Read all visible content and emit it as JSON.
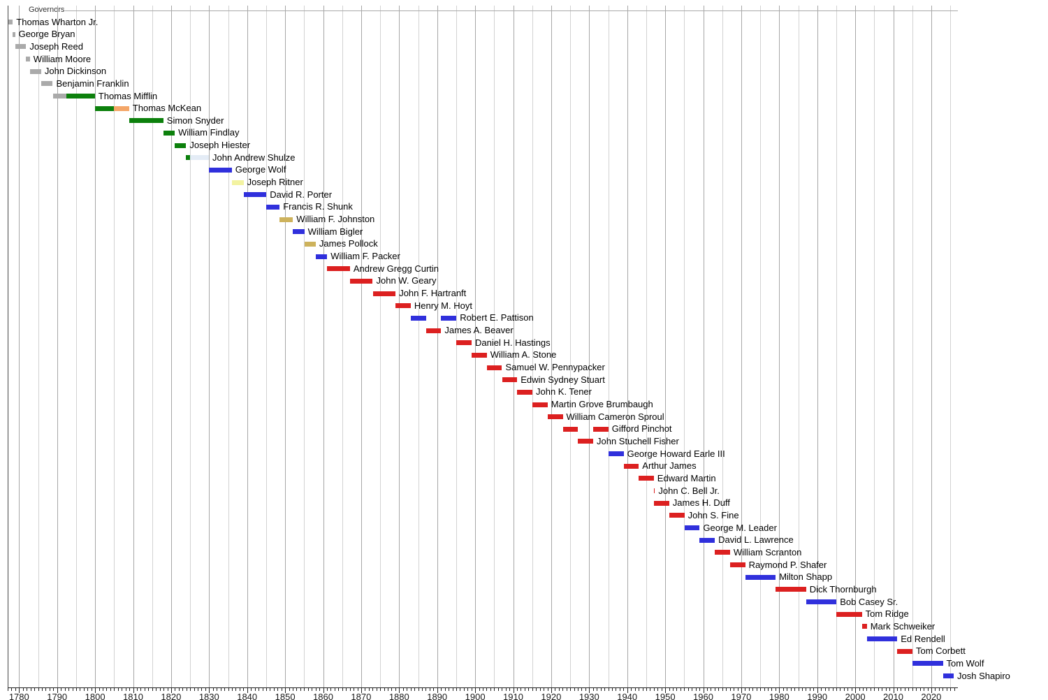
{
  "chart_data": {
    "type": "timeline-gantt",
    "title": "Governors",
    "subtitle": "",
    "xlabel": "",
    "ylabel": "",
    "legend": "none",
    "x_axis": {
      "min": 1777,
      "max": 2027,
      "tick_interval": 10,
      "gridline_interval": 5,
      "grid": true,
      "tick_labels": [
        1780,
        1790,
        1800,
        1810,
        1820,
        1830,
        1840,
        1850,
        1860,
        1870,
        1880,
        1890,
        1900,
        1910,
        1920,
        1930,
        1940,
        1950,
        1960,
        1970,
        1980,
        1990,
        2000,
        2010,
        2020
      ]
    },
    "party_colors": {
      "no_party": "#aaaaaa",
      "democratic_republican": "#0c800c",
      "federalist": "#f4a668",
      "national_republican": "#e4ecf6",
      "democratic": "#3030dc",
      "anti_masonic": "#f3f3a1",
      "whig": "#cdb25c",
      "republican": "#dc2020"
    },
    "governors": [
      {
        "name": "Thomas Wharton Jr.",
        "terms": [
          {
            "start": 1777.15,
            "end": 1778.35,
            "party": "no_party"
          }
        ]
      },
      {
        "name": "George Bryan",
        "terms": [
          {
            "start": 1778.35,
            "end": 1778.95,
            "party": "no_party"
          }
        ]
      },
      {
        "name": "Joseph Reed",
        "terms": [
          {
            "start": 1778.95,
            "end": 1781.85,
            "party": "no_party"
          }
        ]
      },
      {
        "name": "William Moore",
        "terms": [
          {
            "start": 1781.85,
            "end": 1782.85,
            "party": "no_party"
          }
        ]
      },
      {
        "name": "John Dickinson",
        "terms": [
          {
            "start": 1782.85,
            "end": 1785.8,
            "party": "no_party"
          }
        ]
      },
      {
        "name": "Benjamin Franklin",
        "terms": [
          {
            "start": 1785.8,
            "end": 1788.85,
            "party": "no_party"
          }
        ]
      },
      {
        "name": "Thomas Mifflin",
        "terms": [
          {
            "start": 1788.85,
            "end": 1792.5,
            "party": "no_party"
          },
          {
            "start": 1792.5,
            "end": 1799.95,
            "party": "democratic_republican"
          }
        ]
      },
      {
        "name": "Thomas McKean",
        "terms": [
          {
            "start": 1799.95,
            "end": 1805.0,
            "party": "democratic_republican"
          },
          {
            "start": 1805.0,
            "end": 1808.95,
            "party": "federalist"
          }
        ]
      },
      {
        "name": "Simon Snyder",
        "terms": [
          {
            "start": 1808.95,
            "end": 1817.95,
            "party": "democratic_republican"
          }
        ]
      },
      {
        "name": "William Findlay",
        "terms": [
          {
            "start": 1817.95,
            "end": 1820.95,
            "party": "democratic_republican"
          }
        ]
      },
      {
        "name": "Joseph Hiester",
        "terms": [
          {
            "start": 1820.95,
            "end": 1823.95,
            "party": "democratic_republican"
          }
        ]
      },
      {
        "name": "John Andrew Shulze",
        "terms": [
          {
            "start": 1823.95,
            "end": 1825.0,
            "party": "democratic_republican"
          },
          {
            "start": 1825.0,
            "end": 1829.95,
            "party": "national_republican"
          }
        ]
      },
      {
        "name": "George Wolf",
        "terms": [
          {
            "start": 1829.95,
            "end": 1835.95,
            "party": "democratic"
          }
        ]
      },
      {
        "name": "Joseph Ritner",
        "terms": [
          {
            "start": 1835.95,
            "end": 1839.05,
            "party": "anti_masonic"
          }
        ]
      },
      {
        "name": "David R. Porter",
        "terms": [
          {
            "start": 1839.05,
            "end": 1845.05,
            "party": "democratic"
          }
        ]
      },
      {
        "name": "Francis R. Shunk",
        "terms": [
          {
            "start": 1845.05,
            "end": 1848.55,
            "party": "democratic"
          }
        ]
      },
      {
        "name": "William F. Johnston",
        "terms": [
          {
            "start": 1848.55,
            "end": 1852.05,
            "party": "whig"
          }
        ]
      },
      {
        "name": "William Bigler",
        "terms": [
          {
            "start": 1852.05,
            "end": 1855.05,
            "party": "democratic"
          }
        ]
      },
      {
        "name": "James Pollock",
        "terms": [
          {
            "start": 1855.05,
            "end": 1858.05,
            "party": "whig"
          }
        ]
      },
      {
        "name": "William F. Packer",
        "terms": [
          {
            "start": 1858.05,
            "end": 1861.05,
            "party": "democratic"
          }
        ]
      },
      {
        "name": "Andrew Gregg Curtin",
        "terms": [
          {
            "start": 1861.05,
            "end": 1867.05,
            "party": "republican"
          }
        ]
      },
      {
        "name": "John W. Geary",
        "terms": [
          {
            "start": 1867.05,
            "end": 1873.05,
            "party": "republican"
          }
        ]
      },
      {
        "name": "John F. Hartranft",
        "terms": [
          {
            "start": 1873.05,
            "end": 1879.05,
            "party": "republican"
          }
        ]
      },
      {
        "name": "Henry M. Hoyt",
        "terms": [
          {
            "start": 1879.05,
            "end": 1883.05,
            "party": "republican"
          }
        ]
      },
      {
        "name": "Robert E. Pattison",
        "terms": [
          {
            "start": 1883.05,
            "end": 1887.05,
            "party": "democratic"
          },
          {
            "start": 1891.05,
            "end": 1895.05,
            "party": "democratic"
          }
        ]
      },
      {
        "name": "James A. Beaver",
        "terms": [
          {
            "start": 1887.05,
            "end": 1891.05,
            "party": "republican"
          }
        ]
      },
      {
        "name": "Daniel H. Hastings",
        "terms": [
          {
            "start": 1895.05,
            "end": 1899.05,
            "party": "republican"
          }
        ]
      },
      {
        "name": "William A. Stone",
        "terms": [
          {
            "start": 1899.05,
            "end": 1903.05,
            "party": "republican"
          }
        ]
      },
      {
        "name": "Samuel W. Pennypacker",
        "terms": [
          {
            "start": 1903.05,
            "end": 1907.05,
            "party": "republican"
          }
        ]
      },
      {
        "name": "Edwin Sydney Stuart",
        "terms": [
          {
            "start": 1907.05,
            "end": 1911.05,
            "party": "republican"
          }
        ]
      },
      {
        "name": "John K. Tener",
        "terms": [
          {
            "start": 1911.05,
            "end": 1915.05,
            "party": "republican"
          }
        ]
      },
      {
        "name": "Martin Grove Brumbaugh",
        "terms": [
          {
            "start": 1915.05,
            "end": 1919.05,
            "party": "republican"
          }
        ]
      },
      {
        "name": "William Cameron Sproul",
        "terms": [
          {
            "start": 1919.05,
            "end": 1923.05,
            "party": "republican"
          }
        ]
      },
      {
        "name": "Gifford Pinchot",
        "terms": [
          {
            "start": 1923.05,
            "end": 1927.05,
            "party": "republican"
          },
          {
            "start": 1931.05,
            "end": 1935.05,
            "party": "republican"
          }
        ]
      },
      {
        "name": "John Stuchell Fisher",
        "terms": [
          {
            "start": 1927.05,
            "end": 1931.05,
            "party": "republican"
          }
        ]
      },
      {
        "name": "George Howard Earle III",
        "terms": [
          {
            "start": 1935.05,
            "end": 1939.05,
            "party": "democratic"
          }
        ]
      },
      {
        "name": "Arthur James",
        "terms": [
          {
            "start": 1939.05,
            "end": 1943.05,
            "party": "republican"
          }
        ]
      },
      {
        "name": "Edward Martin",
        "terms": [
          {
            "start": 1943.05,
            "end": 1947.0,
            "party": "republican"
          }
        ]
      },
      {
        "name": "John C. Bell Jr.",
        "terms": [
          {
            "start": 1947.0,
            "end": 1947.3,
            "party": "republican"
          }
        ]
      },
      {
        "name": "James H. Duff",
        "terms": [
          {
            "start": 1947.1,
            "end": 1951.05,
            "party": "republican"
          }
        ]
      },
      {
        "name": "John S. Fine",
        "terms": [
          {
            "start": 1951.05,
            "end": 1955.05,
            "party": "republican"
          }
        ]
      },
      {
        "name": "George M. Leader",
        "terms": [
          {
            "start": 1955.05,
            "end": 1959.05,
            "party": "democratic"
          }
        ]
      },
      {
        "name": "David L. Lawrence",
        "terms": [
          {
            "start": 1959.05,
            "end": 1963.05,
            "party": "democratic"
          }
        ]
      },
      {
        "name": "William Scranton",
        "terms": [
          {
            "start": 1963.05,
            "end": 1967.05,
            "party": "republican"
          }
        ]
      },
      {
        "name": "Raymond P. Shafer",
        "terms": [
          {
            "start": 1967.05,
            "end": 1971.05,
            "party": "republican"
          }
        ]
      },
      {
        "name": "Milton Shapp",
        "terms": [
          {
            "start": 1971.05,
            "end": 1979.05,
            "party": "democratic"
          }
        ]
      },
      {
        "name": "Dick Thornburgh",
        "terms": [
          {
            "start": 1979.05,
            "end": 1987.05,
            "party": "republican"
          }
        ]
      },
      {
        "name": "Bob Casey Sr.",
        "terms": [
          {
            "start": 1987.05,
            "end": 1995.05,
            "party": "democratic"
          }
        ]
      },
      {
        "name": "Tom Ridge",
        "terms": [
          {
            "start": 1995.05,
            "end": 2001.75,
            "party": "republican"
          }
        ]
      },
      {
        "name": "Mark Schweiker",
        "terms": [
          {
            "start": 2001.75,
            "end": 2003.05,
            "party": "republican"
          }
        ]
      },
      {
        "name": "Ed Rendell",
        "terms": [
          {
            "start": 2003.05,
            "end": 2011.05,
            "party": "democratic"
          }
        ]
      },
      {
        "name": "Tom Corbett",
        "terms": [
          {
            "start": 2011.05,
            "end": 2015.05,
            "party": "republican"
          }
        ]
      },
      {
        "name": "Tom Wolf",
        "terms": [
          {
            "start": 2015.05,
            "end": 2023.05,
            "party": "democratic"
          }
        ]
      },
      {
        "name": "Josh Shapiro",
        "terms": [
          {
            "start": 2023.05,
            "end": 2025.9,
            "party": "democratic"
          }
        ]
      }
    ]
  }
}
